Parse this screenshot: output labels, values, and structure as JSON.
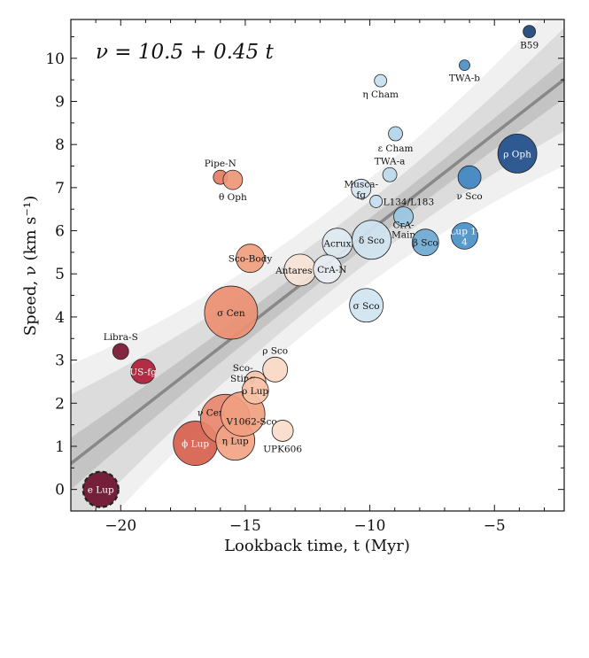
{
  "chart_data": {
    "type": "scatter",
    "annotation": "ν = 10.5 + 0.45 t",
    "xlabel": "Lookback time, t (Myr)",
    "ylabel": "Speed, ν (km s⁻¹)",
    "xlim": [
      -22,
      -2.2
    ],
    "ylim": [
      -0.5,
      10.9
    ],
    "xticks": [
      -20,
      -15,
      -10,
      -5
    ],
    "yticks": [
      0,
      1,
      2,
      3,
      4,
      5,
      6,
      7,
      8,
      9,
      10
    ],
    "xtick_labels": [
      "−20",
      "−15",
      "−10",
      "−5"
    ],
    "ytick_labels": [
      "0",
      "1",
      "2",
      "3",
      "4",
      "5",
      "6",
      "7",
      "8",
      "9",
      "10"
    ],
    "grid": false,
    "fit": {
      "intercept": 10.5,
      "slope": 0.45,
      "color": "#888888"
    },
    "bands": [
      {
        "level": "outer",
        "color": "#f0f0f0",
        "t": [
          -22,
          -12,
          -2.2
        ],
        "halfwidth": [
          2.3,
          1.2,
          2.0
        ]
      },
      {
        "level": "middle",
        "color": "#dcdcdc",
        "t": [
          -22,
          -12,
          -2.2
        ],
        "halfwidth": [
          1.6,
          0.7,
          1.2
        ]
      },
      {
        "level": "inner",
        "color": "#c4c4c4",
        "t": [
          -22,
          -12,
          -2.2
        ],
        "halfwidth": [
          0.6,
          0.3,
          0.45
        ]
      }
    ],
    "points": [
      {
        "name": "e Lup",
        "t": -20.8,
        "v": 0.0,
        "color": "#6b0f2b",
        "label_pos": "inside",
        "dashed": true
      },
      {
        "name": "Libra-S",
        "t": -20.0,
        "v": 3.2,
        "color": "#7a1530",
        "label_pos": "above"
      },
      {
        "name": "US-fg",
        "t": -19.1,
        "v": 2.74,
        "color": "#b01c35",
        "label_pos": "inside"
      },
      {
        "name": "σ Cen",
        "t": -15.57,
        "v": 4.1,
        "color": "#eb8f72",
        "label_pos": "inside"
      },
      {
        "name": "ϕ Lup",
        "t": -17.0,
        "v": 1.07,
        "color": "#d6604d",
        "label_pos": "inside"
      },
      {
        "name": "ν Cen",
        "t": -15.8,
        "v": 1.63,
        "color": "#e8866c",
        "label_pos": "inside"
      },
      {
        "name": "η Lup",
        "t": -15.4,
        "v": 1.13,
        "color": "#f2a485",
        "label_pos": "inside"
      },
      {
        "name": "V1062-Sco",
        "t": -15.1,
        "v": 1.75,
        "color": "#f0a080",
        "label_pos": "inside"
      },
      {
        "name": "Sco-Sting",
        "t": -14.6,
        "v": 2.5,
        "color": "#f8c5ab",
        "label_pos": "above-left"
      },
      {
        "name": "ρ Lup",
        "t": -14.6,
        "v": 2.29,
        "color": "#f8c3a8",
        "label_pos": "inside"
      },
      {
        "name": "ρ Sco",
        "t": -13.8,
        "v": 2.78,
        "color": "#fad7c4",
        "label_pos": "above"
      },
      {
        "name": "UPK606",
        "t": -13.5,
        "v": 1.36,
        "color": "#fbdcca",
        "label_pos": "below"
      },
      {
        "name": "Sco-Body",
        "t": -14.8,
        "v": 5.36,
        "color": "#f09e7e",
        "label_pos": "inside"
      },
      {
        "name": "Pipe-N",
        "t": -16.0,
        "v": 7.24,
        "color": "#e67d63",
        "label_pos": "above"
      },
      {
        "name": "θ Oph",
        "t": -15.5,
        "v": 7.18,
        "color": "#ee9676",
        "label_pos": "below"
      },
      {
        "name": "Antares",
        "t": -12.8,
        "v": 5.09,
        "color": "#f9e4d8",
        "label_pos": "inside"
      },
      {
        "name": "Acrux",
        "t": -11.3,
        "v": 5.71,
        "color": "#dde9f1",
        "label_pos": "inside"
      },
      {
        "name": "CrA-N",
        "t": -11.7,
        "v": 5.11,
        "color": "#eaeef2",
        "label_pos": "inside"
      },
      {
        "name": "σ Sco",
        "t": -10.14,
        "v": 4.27,
        "color": "#d0e4f0",
        "label_pos": "inside"
      },
      {
        "name": "δ Sco",
        "t": -9.93,
        "v": 5.79,
        "color": "#cfe3ef",
        "label_pos": "inside"
      },
      {
        "name": "Musca-fg",
        "t": -10.35,
        "v": 6.97,
        "color": "#d4e6f1",
        "label_pos": "inside-two"
      },
      {
        "name": "L134/L183",
        "t": -9.75,
        "v": 6.68,
        "color": "#c6dfee",
        "label_pos": "right"
      },
      {
        "name": "CrA-Main",
        "t": -8.65,
        "v": 6.33,
        "color": "#99c7e2",
        "label_pos": "below-two"
      },
      {
        "name": "TWA-a",
        "t": -9.2,
        "v": 7.3,
        "color": "#bcd9ec",
        "label_pos": "above"
      },
      {
        "name": "ε Cham",
        "t": -8.97,
        "v": 8.25,
        "color": "#b2d4ea",
        "label_pos": "below"
      },
      {
        "name": "η Cham",
        "t": -9.57,
        "v": 9.48,
        "color": "#c5dfee",
        "label_pos": "below"
      },
      {
        "name": "β Sco",
        "t": -7.77,
        "v": 5.73,
        "color": "#6fa9d3",
        "label_pos": "inside"
      },
      {
        "name": "Lup 1-4",
        "t": -6.2,
        "v": 5.88,
        "color": "#4a90c8",
        "label_pos": "inside-two"
      },
      {
        "name": "ν Sco",
        "t": -6.0,
        "v": 7.24,
        "color": "#3d84c0",
        "label_pos": "below"
      },
      {
        "name": "TWA-b",
        "t": -6.2,
        "v": 9.84,
        "color": "#4a8fc7",
        "label_pos": "below"
      },
      {
        "name": "ρ Oph",
        "t": -4.08,
        "v": 7.79,
        "color": "#1e4e8a",
        "label_pos": "inside"
      },
      {
        "name": "B59",
        "t": -3.6,
        "v": 10.62,
        "color": "#1c4379",
        "label_pos": "below"
      }
    ]
  }
}
